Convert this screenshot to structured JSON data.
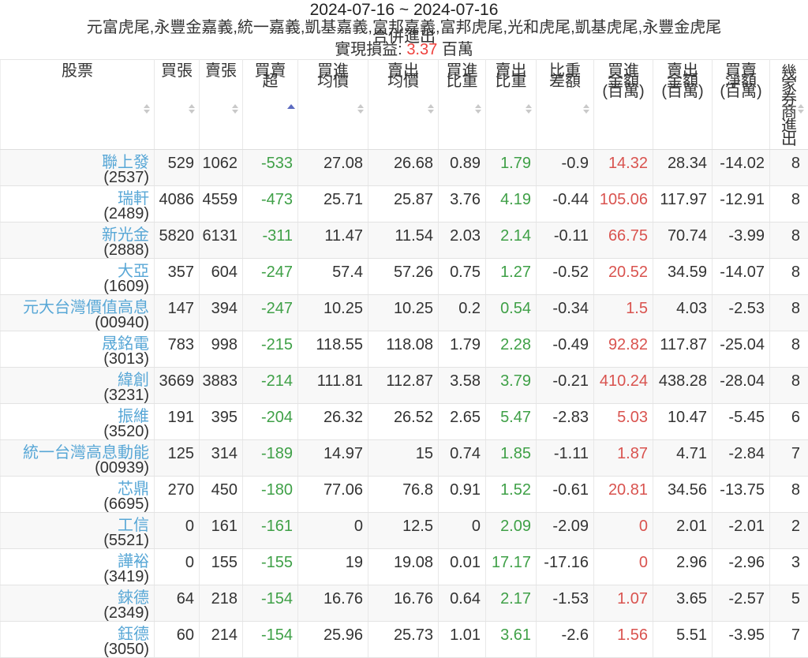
{
  "title": {
    "date_range": "2024-07-16 ~ 2024-07-16",
    "brokers": "元富虎尾,永豐金嘉義,統一嘉義,凱基嘉義,富邦嘉義,富邦虎尾,光和虎尾,凱基虎尾,永豐金虎尾",
    "merge_label": "合併進出",
    "pnl_label": "實現損益:",
    "pnl_value": "3.37",
    "pnl_unit": "百萬"
  },
  "colors": {
    "blue": "#58a7d6",
    "green": "#3fa047",
    "red": "#d9534f",
    "red2": "#ef423e"
  },
  "table": {
    "columns": [
      {
        "key": "stock",
        "label_lines": [
          "股票"
        ],
        "sort": "both",
        "vertical": false,
        "num_color": "dark"
      },
      {
        "key": "buy-lots",
        "label_lines": [
          "買張"
        ],
        "sort": "both",
        "vertical": false,
        "num_color": "dark"
      },
      {
        "key": "sell-lots",
        "label_lines": [
          "賣張"
        ],
        "sort": "both",
        "vertical": false,
        "num_color": "dark"
      },
      {
        "key": "net-lots",
        "label_lines": [
          "買賣",
          "超"
        ],
        "sort": "asc",
        "vertical": false,
        "num_color": "green"
      },
      {
        "key": "avg-buy-price",
        "label_lines": [
          "買進",
          "均價"
        ],
        "sort": "both",
        "vertical": false,
        "num_color": "dark"
      },
      {
        "key": "avg-sell-price",
        "label_lines": [
          "賣出",
          "均價"
        ],
        "sort": "both",
        "vertical": false,
        "num_color": "dark"
      },
      {
        "key": "buy-weight",
        "label_lines": [
          "買進",
          "比重"
        ],
        "sort": "both",
        "vertical": false,
        "num_color": "dark"
      },
      {
        "key": "sell-weight",
        "label_lines": [
          "賣出",
          "比重"
        ],
        "sort": "both",
        "vertical": false,
        "num_color": "green"
      },
      {
        "key": "weight-diff",
        "label_lines": [
          "比重",
          "差額"
        ],
        "sort": "both",
        "vertical": false,
        "num_color": "dark"
      },
      {
        "key": "buy-amount",
        "label_lines": [
          "買進",
          "金額",
          "(百萬)"
        ],
        "sort": "none",
        "vertical": false,
        "num_color": "red"
      },
      {
        "key": "sell-amount",
        "label_lines": [
          "賣出",
          "金額",
          "(百萬)"
        ],
        "sort": "none",
        "vertical": false,
        "num_color": "dark"
      },
      {
        "key": "net-amount",
        "label_lines": [
          "買賣",
          "淨額",
          "(百萬)"
        ],
        "sort": "none",
        "vertical": false,
        "num_color": "dark"
      },
      {
        "key": "broker-count",
        "label_lines": [
          "幾",
          "家",
          "券",
          "商",
          "進",
          "出"
        ],
        "sort": "both",
        "vertical": true,
        "num_color": "dark"
      }
    ],
    "column_num_colors_note": "values array order: 買張,賣張,買賣超,買進均價,賣出均價,買進比重,賣出比重,比重差額,買進金額,賣出金額,買賣淨額,幾家券商進出",
    "rows": [
      {
        "name": "聯上發",
        "code": "(2537)",
        "values": [
          "529",
          "1062",
          "-533",
          "27.08",
          "26.68",
          "0.89",
          "1.79",
          "-0.9",
          "14.32",
          "28.34",
          "-14.02",
          "8"
        ]
      },
      {
        "name": "瑞軒",
        "code": "(2489)",
        "values": [
          "4086",
          "4559",
          "-473",
          "25.71",
          "25.87",
          "3.76",
          "4.19",
          "-0.44",
          "105.06",
          "117.97",
          "-12.91",
          "8"
        ]
      },
      {
        "name": "新光金",
        "code": "(2888)",
        "values": [
          "5820",
          "6131",
          "-311",
          "11.47",
          "11.54",
          "2.03",
          "2.14",
          "-0.11",
          "66.75",
          "70.74",
          "-3.99",
          "8"
        ]
      },
      {
        "name": "大亞",
        "code": "(1609)",
        "values": [
          "357",
          "604",
          "-247",
          "57.4",
          "57.26",
          "0.75",
          "1.27",
          "-0.52",
          "20.52",
          "34.59",
          "-14.07",
          "8"
        ]
      },
      {
        "name": "元大台灣價值高息",
        "code": "(00940)",
        "values": [
          "147",
          "394",
          "-247",
          "10.25",
          "10.25",
          "0.2",
          "0.54",
          "-0.34",
          "1.5",
          "4.03",
          "-2.53",
          "8"
        ]
      },
      {
        "name": "晟銘電",
        "code": "(3013)",
        "values": [
          "783",
          "998",
          "-215",
          "118.55",
          "118.08",
          "1.79",
          "2.28",
          "-0.49",
          "92.82",
          "117.87",
          "-25.04",
          "8"
        ]
      },
      {
        "name": "緯創",
        "code": "(3231)",
        "values": [
          "3669",
          "3883",
          "-214",
          "111.81",
          "112.87",
          "3.58",
          "3.79",
          "-0.21",
          "410.24",
          "438.28",
          "-28.04",
          "8"
        ]
      },
      {
        "name": "振維",
        "code": "(3520)",
        "values": [
          "191",
          "395",
          "-204",
          "26.32",
          "26.52",
          "2.65",
          "5.47",
          "-2.83",
          "5.03",
          "10.47",
          "-5.45",
          "6"
        ]
      },
      {
        "name": "統一台灣高息動能",
        "code": "(00939)",
        "values": [
          "125",
          "314",
          "-189",
          "14.97",
          "15",
          "0.74",
          "1.85",
          "-1.11",
          "1.87",
          "4.71",
          "-2.84",
          "7"
        ]
      },
      {
        "name": "芯鼎",
        "code": "(6695)",
        "values": [
          "270",
          "450",
          "-180",
          "77.06",
          "76.8",
          "0.91",
          "1.52",
          "-0.61",
          "20.81",
          "34.56",
          "-13.75",
          "8"
        ]
      },
      {
        "name": "工信",
        "code": "(5521)",
        "values": [
          "0",
          "161",
          "-161",
          "0",
          "12.5",
          "0",
          "2.09",
          "-2.09",
          "0",
          "2.01",
          "-2.01",
          "2"
        ]
      },
      {
        "name": "譁裕",
        "code": "(3419)",
        "values": [
          "0",
          "155",
          "-155",
          "19",
          "19.08",
          "0.01",
          "17.17",
          "-17.16",
          "0",
          "2.96",
          "-2.96",
          "3"
        ]
      },
      {
        "name": "錸德",
        "code": "(2349)",
        "values": [
          "64",
          "218",
          "-154",
          "16.76",
          "16.76",
          "0.64",
          "2.17",
          "-1.53",
          "1.07",
          "3.65",
          "-2.57",
          "5"
        ]
      },
      {
        "name": "鈺德",
        "code": "(3050)",
        "values": [
          "60",
          "214",
          "-154",
          "25.96",
          "25.73",
          "1.01",
          "3.61",
          "-2.6",
          "1.56",
          "5.51",
          "-3.95",
          "7"
        ]
      }
    ]
  }
}
